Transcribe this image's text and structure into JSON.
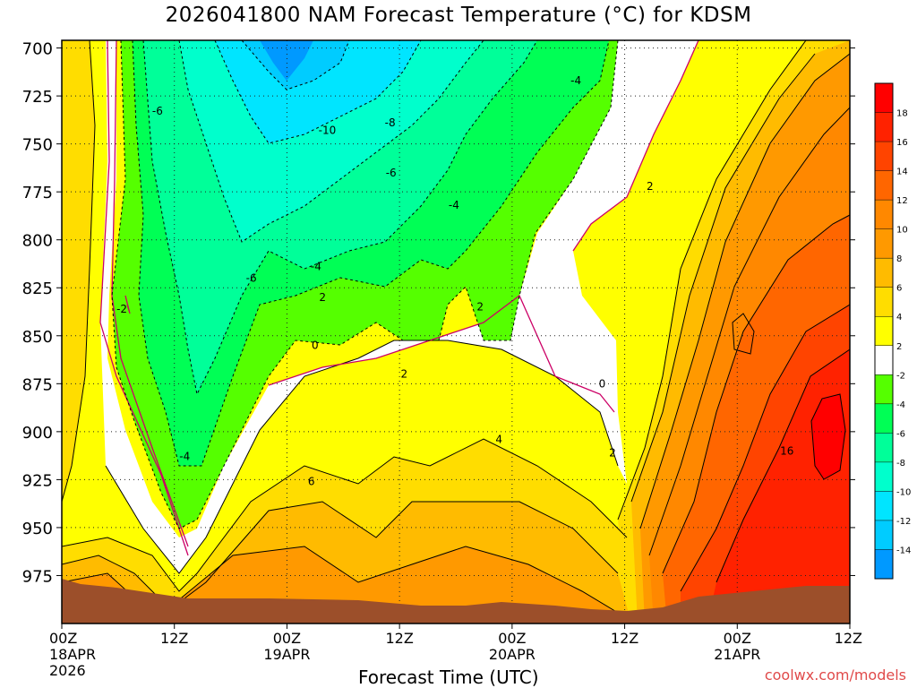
{
  "title": "2026041800 NAM Forecast Temperature (°C) for KDSM",
  "credit": "coolwx.com/models",
  "colors": {
    "terrain": "#9c4f2a",
    "fill_below_m2": "#55ff00",
    "fill_below_m4": "#00ff55",
    "fill_below_m6": "#00ff99",
    "fill_below_m8": "#00ffcc",
    "fill_below_m10": "#00e5ff",
    "fill_below_m12": "#00ccff",
    "fill_below_m14": "#0099ff",
    "fill_neutral": "#ffffff",
    "fill_2_4": "#ffff00",
    "fill_4_6": "#ffdd00",
    "fill_6_8": "#ffbb00",
    "fill_8_10": "#ff9900",
    "fill_10_12": "#ff8800",
    "fill_12_14": "#ff6600",
    "fill_14_16": "#ff4400",
    "fill_16_18": "#ff2200",
    "fill_above_18": "#ff0000",
    "zero_line": "#cc0066"
  },
  "chart_data": {
    "type": "heatmap",
    "subtype": "time-height filled contour",
    "xlabel": "Forecast Time (UTC)",
    "ylabel": "",
    "x_ticks": [
      {
        "label": "00Z",
        "sub1": "18APR",
        "sub2": "2026"
      },
      {
        "label": "12Z",
        "sub1": "",
        "sub2": ""
      },
      {
        "label": "00Z",
        "sub1": "19APR",
        "sub2": ""
      },
      {
        "label": "12Z",
        "sub1": "",
        "sub2": ""
      },
      {
        "label": "00Z",
        "sub1": "20APR",
        "sub2": ""
      },
      {
        "label": "12Z",
        "sub1": "",
        "sub2": ""
      },
      {
        "label": "00Z",
        "sub1": "21APR",
        "sub2": ""
      },
      {
        "label": "12Z",
        "sub1": "",
        "sub2": ""
      }
    ],
    "x_hours": [
      0,
      12,
      24,
      36,
      48,
      60,
      72,
      84
    ],
    "xlim": [
      0,
      84
    ],
    "y_ticks": [
      "700",
      "725",
      "750",
      "775",
      "800",
      "825",
      "850",
      "875",
      "900",
      "925",
      "950",
      "975"
    ],
    "y_values": [
      700,
      725,
      750,
      775,
      800,
      825,
      850,
      875,
      900,
      925,
      950,
      975
    ],
    "ylim": [
      696,
      1000
    ],
    "y_inverted": true,
    "grid": true,
    "colorbar": {
      "position": "right",
      "labels": [
        "18",
        "16",
        "14",
        "12",
        "10",
        "8",
        "6",
        "4",
        "2",
        "-2",
        "-4",
        "-6",
        "-8",
        "-10",
        "-12",
        "-14"
      ]
    },
    "contour_labels": [
      {
        "text": "-6",
        "x": 10.2,
        "y": 733
      },
      {
        "text": "-10",
        "x": 28.3,
        "y": 743
      },
      {
        "text": "-8",
        "x": 35.0,
        "y": 739
      },
      {
        "text": "-4",
        "x": 54.8,
        "y": 717
      },
      {
        "text": "-6",
        "x": 35.1,
        "y": 765
      },
      {
        "text": "-4",
        "x": 41.8,
        "y": 782
      },
      {
        "text": "2",
        "x": 62.7,
        "y": 772
      },
      {
        "text": "-6",
        "x": 20.2,
        "y": 820
      },
      {
        "text": "-4",
        "x": 27.1,
        "y": 814
      },
      {
        "text": "-2",
        "x": 6.4,
        "y": 836
      },
      {
        "text": "2",
        "x": 27.8,
        "y": 830
      },
      {
        "text": "2",
        "x": 44.6,
        "y": 835
      },
      {
        "text": "0",
        "x": 27.0,
        "y": 855
      },
      {
        "text": "2",
        "x": 36.5,
        "y": 870
      },
      {
        "text": "0",
        "x": 57.6,
        "y": 875
      },
      {
        "text": "4",
        "x": 46.6,
        "y": 904
      },
      {
        "text": "2",
        "x": 58.7,
        "y": 911
      },
      {
        "text": "-4",
        "x": 13.1,
        "y": 913
      },
      {
        "text": "6",
        "x": 26.6,
        "y": 926
      },
      {
        "text": "16",
        "x": 77.3,
        "y": 910
      }
    ]
  }
}
